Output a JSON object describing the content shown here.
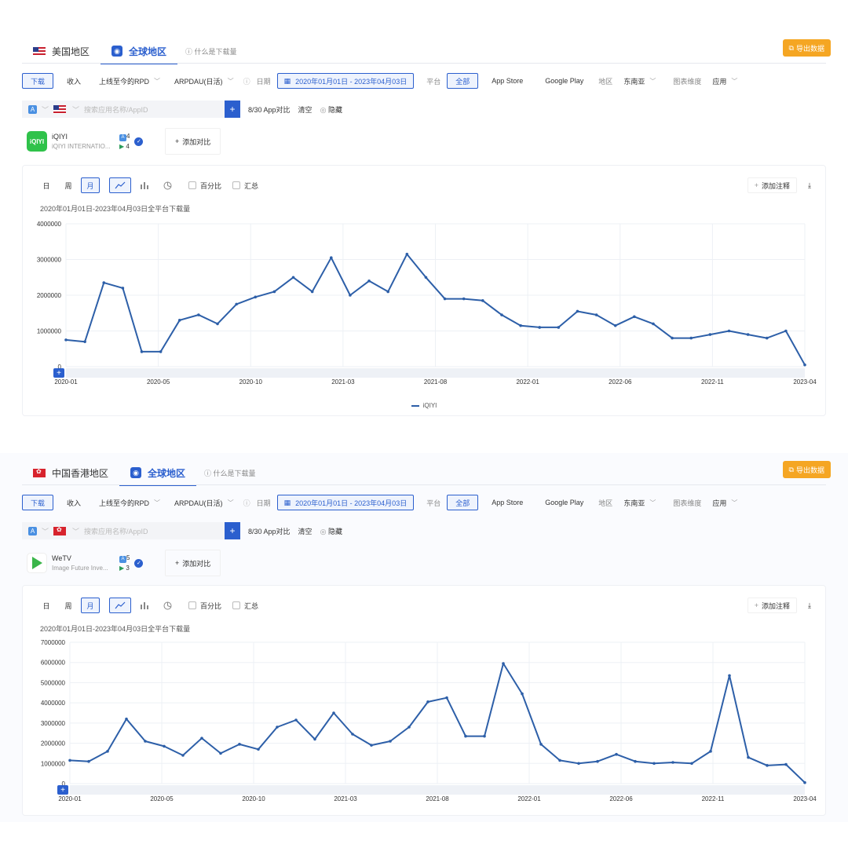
{
  "panels": [
    {
      "region_tab": "美国地区",
      "global_tab": "全球地区",
      "hint": "什么是下载量",
      "export": "导出数据",
      "filters": {
        "download": "下载",
        "revenue": "收入",
        "rpd": "上线至今的RPD",
        "arpdau": "ARPDAU(日活)",
        "date_label": "日期",
        "date_range": "2020年01月01日 - 2023年04月03日",
        "platform_label": "平台",
        "platform_all": "全部",
        "platform_ios": "App Store",
        "platform_gp": "Google Play",
        "region_label": "地区",
        "region_value": "东南亚",
        "dimension_label": "图表维度",
        "dimension_value": "应用"
      },
      "search": {
        "placeholder": "搜索应用名称/AppID",
        "compare_count": "8/30 App对比",
        "clear": "清空",
        "hide": "隐藏"
      },
      "app": {
        "name": "iQIYI",
        "publisher": "iQIYI INTERNATIO...",
        "icon_text": "iQIYI",
        "ios_count": "4",
        "gp_count": "4"
      },
      "add_compare": "添加对比",
      "chart_tools": {
        "day": "日",
        "week": "周",
        "month": "月",
        "percent": "百分比",
        "summary": "汇总",
        "add_note": "添加注释"
      },
      "subtitle": "2020年01月01日-2023年04月03日全平台下载量",
      "legend": "iQIYI"
    },
    {
      "region_tab": "中国香港地区",
      "global_tab": "全球地区",
      "hint": "什么是下载量",
      "export": "导出数据",
      "filters": {
        "download": "下载",
        "revenue": "收入",
        "rpd": "上线至今的RPD",
        "arpdau": "ARPDAU(日活)",
        "date_label": "日期",
        "date_range": "2020年01月01日 - 2023年04月03日",
        "platform_label": "平台",
        "platform_all": "全部",
        "platform_ios": "App Store",
        "platform_gp": "Google Play",
        "region_label": "地区",
        "region_value": "东南亚",
        "dimension_label": "图表维度",
        "dimension_value": "应用"
      },
      "search": {
        "placeholder": "搜索应用名称/AppID",
        "compare_count": "8/30 App对比",
        "clear": "清空",
        "hide": "隐藏"
      },
      "app": {
        "name": "WeTV",
        "publisher": "Image Future Inve...",
        "icon_text": "",
        "ios_count": "5",
        "gp_count": "3"
      },
      "add_compare": "添加对比",
      "chart_tools": {
        "day": "日",
        "week": "周",
        "month": "月",
        "percent": "百分比",
        "summary": "汇总",
        "add_note": "添加注释"
      },
      "subtitle": "2020年01月01日-2023年04月03日全平台下载量",
      "legend": ""
    }
  ],
  "chart_data": [
    {
      "type": "line",
      "title": "2020年01月01日-2023年04月03日全平台下载量",
      "x_tick_labels": [
        "2020-01",
        "2020-05",
        "2020-10",
        "2021-03",
        "2021-08",
        "2022-01",
        "2022-06",
        "2022-11",
        "2023-04"
      ],
      "y_tick_labels": [
        "0",
        "1000000",
        "2000000",
        "3000000",
        "4000000"
      ],
      "ylim": [
        0,
        4000000
      ],
      "x": [
        "2020-01",
        "2020-02",
        "2020-03",
        "2020-04",
        "2020-05",
        "2020-06",
        "2020-07",
        "2020-08",
        "2020-09",
        "2020-10",
        "2020-11",
        "2020-12",
        "2021-01",
        "2021-02",
        "2021-03",
        "2021-04",
        "2021-05",
        "2021-06",
        "2021-07",
        "2021-08",
        "2021-09",
        "2021-10",
        "2021-11",
        "2021-12",
        "2022-01",
        "2022-02",
        "2022-03",
        "2022-04",
        "2022-05",
        "2022-06",
        "2022-07",
        "2022-08",
        "2022-09",
        "2022-10",
        "2022-11",
        "2022-12",
        "2023-01",
        "2023-02",
        "2023-03",
        "2023-04"
      ],
      "series": [
        {
          "name": "iQIYI",
          "values": [
            750000,
            700000,
            2350000,
            2200000,
            420000,
            420000,
            1300000,
            1450000,
            1200000,
            1750000,
            1950000,
            2100000,
            2500000,
            2100000,
            3050000,
            2000000,
            2400000,
            2100000,
            3150000,
            2500000,
            1900000,
            1900000,
            1850000,
            1450000,
            1150000,
            1100000,
            1100000,
            1550000,
            1450000,
            1150000,
            1400000,
            1200000,
            800000,
            800000,
            900000,
            1000000,
            900000,
            800000,
            1000000,
            50000
          ]
        }
      ],
      "legend_position": "bottom",
      "grid": true,
      "color": "#2d5fa8"
    },
    {
      "type": "line",
      "title": "2020年01月01日-2023年04月03日全平台下载量",
      "x_tick_labels": [
        "2020-01",
        "2020-05",
        "2020-10",
        "2021-03",
        "2021-08",
        "2022-01",
        "2022-06",
        "2022-11",
        "2023-04"
      ],
      "y_tick_labels": [
        "0",
        "1000000",
        "2000000",
        "3000000",
        "4000000",
        "5000000",
        "6000000",
        "7000000"
      ],
      "ylim": [
        0,
        7000000
      ],
      "x": [
        "2020-01",
        "2020-02",
        "2020-03",
        "2020-04",
        "2020-05",
        "2020-06",
        "2020-07",
        "2020-08",
        "2020-09",
        "2020-10",
        "2020-11",
        "2020-12",
        "2021-01",
        "2021-02",
        "2021-03",
        "2021-04",
        "2021-05",
        "2021-06",
        "2021-07",
        "2021-08",
        "2021-09",
        "2021-10",
        "2021-11",
        "2021-12",
        "2022-01",
        "2022-02",
        "2022-03",
        "2022-04",
        "2022-05",
        "2022-06",
        "2022-07",
        "2022-08",
        "2022-09",
        "2022-10",
        "2022-11",
        "2022-12",
        "2023-01",
        "2023-02",
        "2023-03",
        "2023-04"
      ],
      "series": [
        {
          "values": [
            1150000,
            1100000,
            1600000,
            3200000,
            2100000,
            1850000,
            1400000,
            2250000,
            1500000,
            1950000,
            1700000,
            2800000,
            3150000,
            2200000,
            3500000,
            2450000,
            1900000,
            2100000,
            2800000,
            4050000,
            4250000,
            2350000,
            2350000,
            5950000,
            4450000,
            1950000,
            1150000,
            1000000,
            1100000,
            1450000,
            1100000,
            1000000,
            1050000,
            1000000,
            1600000,
            5350000,
            1300000,
            900000,
            950000,
            50000
          ]
        }
      ],
      "legend_position": "none",
      "grid": true,
      "color": "#2d5fa8"
    }
  ]
}
